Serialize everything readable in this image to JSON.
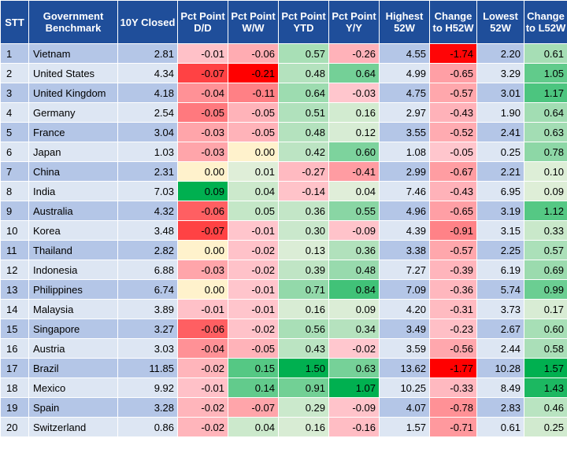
{
  "table": {
    "headers": [
      "STT",
      "Government Benchmark",
      "10Y Closed",
      "Pct Point D/D",
      "Pct Point W/W",
      "Pct Point YTD",
      "Pct Point Y/Y",
      "Highest 52W",
      "Change to H52W",
      "Lowest 52W",
      "Change to L52W"
    ],
    "rows": [
      [
        "1",
        "Vietnam",
        "2.81",
        "-0.01",
        "-0.06",
        "0.57",
        "-0.26",
        "4.55",
        "-1.74",
        "2.20",
        "0.61"
      ],
      [
        "2",
        "United States",
        "4.34",
        "-0.07",
        "-0.21",
        "0.48",
        "0.64",
        "4.99",
        "-0.65",
        "3.29",
        "1.05"
      ],
      [
        "3",
        "United Kingdom",
        "4.18",
        "-0.04",
        "-0.11",
        "0.64",
        "-0.03",
        "4.75",
        "-0.57",
        "3.01",
        "1.17"
      ],
      [
        "4",
        "Germany",
        "2.54",
        "-0.05",
        "-0.05",
        "0.51",
        "0.16",
        "2.97",
        "-0.43",
        "1.90",
        "0.64"
      ],
      [
        "5",
        "France",
        "3.04",
        "-0.03",
        "-0.05",
        "0.48",
        "0.12",
        "3.55",
        "-0.52",
        "2.41",
        "0.63"
      ],
      [
        "6",
        "Japan",
        "1.03",
        "-0.03",
        "0.00",
        "0.42",
        "0.60",
        "1.08",
        "-0.05",
        "0.25",
        "0.78"
      ],
      [
        "7",
        "China",
        "2.31",
        "0.00",
        "0.01",
        "-0.27",
        "-0.41",
        "2.99",
        "-0.67",
        "2.21",
        "0.10"
      ],
      [
        "8",
        "India",
        "7.03",
        "0.09",
        "0.04",
        "-0.14",
        "0.04",
        "7.46",
        "-0.43",
        "6.95",
        "0.09"
      ],
      [
        "9",
        "Australia",
        "4.32",
        "-0.06",
        "0.05",
        "0.36",
        "0.55",
        "4.96",
        "-0.65",
        "3.19",
        "1.12"
      ],
      [
        "10",
        "Korea",
        "3.48",
        "-0.07",
        "-0.01",
        "0.30",
        "-0.09",
        "4.39",
        "-0.91",
        "3.15",
        "0.33"
      ],
      [
        "11",
        "Thailand",
        "2.82",
        "0.00",
        "-0.02",
        "0.13",
        "0.36",
        "3.38",
        "-0.57",
        "2.25",
        "0.57"
      ],
      [
        "12",
        "Indonesia",
        "6.88",
        "-0.03",
        "-0.02",
        "0.39",
        "0.48",
        "7.27",
        "-0.39",
        "6.19",
        "0.69"
      ],
      [
        "13",
        "Philippines",
        "6.74",
        "0.00",
        "-0.01",
        "0.71",
        "0.84",
        "7.09",
        "-0.36",
        "5.74",
        "0.99"
      ],
      [
        "14",
        "Malaysia",
        "3.89",
        "-0.01",
        "-0.01",
        "0.16",
        "0.09",
        "4.20",
        "-0.31",
        "3.73",
        "0.17"
      ],
      [
        "15",
        "Singapore",
        "3.27",
        "-0.06",
        "-0.02",
        "0.56",
        "0.34",
        "3.49",
        "-0.23",
        "2.67",
        "0.60"
      ],
      [
        "16",
        "Austria",
        "3.03",
        "-0.04",
        "-0.05",
        "0.43",
        "-0.02",
        "3.59",
        "-0.56",
        "2.44",
        "0.58"
      ],
      [
        "17",
        "Brazil",
        "11.85",
        "-0.02",
        "0.15",
        "1.50",
        "0.63",
        "13.62",
        "-1.77",
        "10.28",
        "1.57"
      ],
      [
        "18",
        "Mexico",
        "9.92",
        "-0.01",
        "0.14",
        "0.91",
        "1.07",
        "10.25",
        "-0.33",
        "8.49",
        "1.43"
      ],
      [
        "19",
        "Spain",
        "3.28",
        "-0.02",
        "-0.07",
        "0.29",
        "-0.09",
        "4.07",
        "-0.78",
        "2.83",
        "0.46"
      ],
      [
        "20",
        "Switzerland",
        "0.86",
        "-0.02",
        "0.04",
        "0.16",
        "-0.16",
        "1.57",
        "-0.71",
        "0.61",
        "0.25"
      ]
    ]
  },
  "colors": {
    "header_bg": "#1f4e9a",
    "band_odd": "#b4c6e7",
    "band_even": "#dde6f3",
    "negative_light": "#ffc7ce",
    "negative_strong": "#ff0000",
    "neutral": "#fff2cc",
    "positive_light": "#e2efda",
    "positive_strong": "#00b050"
  }
}
